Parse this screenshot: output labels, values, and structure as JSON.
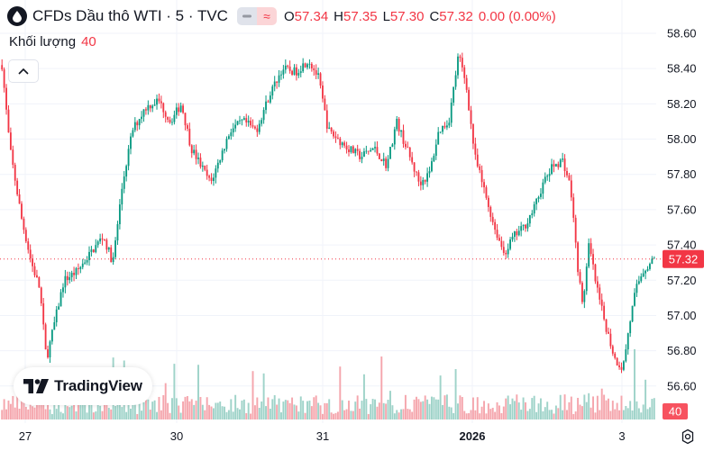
{
  "header": {
    "symbol_title": "CFDs Dầu thô WTI · 5 · TVC",
    "badges": [
      "≈"
    ],
    "ohlc": [
      {
        "key": "O",
        "value": "57.34"
      },
      {
        "key": "H",
        "value": "57.35"
      },
      {
        "key": "L",
        "value": "57.30"
      },
      {
        "key": "C",
        "value": "57.32"
      }
    ],
    "change": "0.00 (0.00%)"
  },
  "volume_legend": {
    "label": "Khối lượng",
    "value": "40"
  },
  "branding": {
    "name": "TradingView"
  },
  "colors": {
    "up": "#089981",
    "down": "#f23645",
    "grid": "#f0f3fa",
    "axis_text": "#131722"
  },
  "chart_data": {
    "type": "candlestick",
    "y_axis": {
      "ticks": [
        "56.60",
        "56.80",
        "57.00",
        "57.20",
        "57.40",
        "57.60",
        "57.80",
        "58.00",
        "58.20",
        "58.40",
        "58.60"
      ],
      "range": [
        56.5,
        58.7
      ]
    },
    "x_axis": {
      "ticks": [
        "27",
        "30",
        "31",
        "2026",
        "3"
      ]
    },
    "last_price": "57.32",
    "last_volume": "40",
    "grid": true,
    "price_path": [
      [
        0,
        58.42
      ],
      [
        0.012,
        57.95
      ],
      [
        0.03,
        57.55
      ],
      [
        0.045,
        57.3
      ],
      [
        0.058,
        57.15
      ],
      [
        0.068,
        56.75
      ],
      [
        0.08,
        56.95
      ],
      [
        0.095,
        57.2
      ],
      [
        0.115,
        57.25
      ],
      [
        0.135,
        57.35
      ],
      [
        0.155,
        57.45
      ],
      [
        0.17,
        57.3
      ],
      [
        0.185,
        57.75
      ],
      [
        0.2,
        58.05
      ],
      [
        0.22,
        58.18
      ],
      [
        0.24,
        58.22
      ],
      [
        0.258,
        58.1
      ],
      [
        0.275,
        58.2
      ],
      [
        0.29,
        57.95
      ],
      [
        0.305,
        57.85
      ],
      [
        0.32,
        57.75
      ],
      [
        0.335,
        57.9
      ],
      [
        0.35,
        58.05
      ],
      [
        0.37,
        58.1
      ],
      [
        0.39,
        58.05
      ],
      [
        0.41,
        58.25
      ],
      [
        0.43,
        58.4
      ],
      [
        0.45,
        58.38
      ],
      [
        0.47,
        58.45
      ],
      [
        0.485,
        58.35
      ],
      [
        0.5,
        58.05
      ],
      [
        0.515,
        58.0
      ],
      [
        0.53,
        57.95
      ],
      [
        0.55,
        57.9
      ],
      [
        0.57,
        57.95
      ],
      [
        0.59,
        57.85
      ],
      [
        0.605,
        58.1
      ],
      [
        0.625,
        57.9
      ],
      [
        0.64,
        57.75
      ],
      [
        0.655,
        57.8
      ],
      [
        0.67,
        58.05
      ],
      [
        0.685,
        58.1
      ],
      [
        0.7,
        58.48
      ],
      [
        0.712,
        58.3
      ],
      [
        0.725,
        57.9
      ],
      [
        0.74,
        57.7
      ],
      [
        0.755,
        57.5
      ],
      [
        0.77,
        57.35
      ],
      [
        0.785,
        57.45
      ],
      [
        0.8,
        57.5
      ],
      [
        0.815,
        57.6
      ],
      [
        0.83,
        57.75
      ],
      [
        0.845,
        57.85
      ],
      [
        0.86,
        57.88
      ],
      [
        0.872,
        57.72
      ],
      [
        0.882,
        57.3
      ],
      [
        0.89,
        57.05
      ],
      [
        0.9,
        57.4
      ],
      [
        0.912,
        57.15
      ],
      [
        0.925,
        56.95
      ],
      [
        0.94,
        56.75
      ],
      [
        0.952,
        56.7
      ],
      [
        0.962,
        56.95
      ],
      [
        0.972,
        57.15
      ],
      [
        0.982,
        57.25
      ],
      [
        0.99,
        57.28
      ],
      [
        1.0,
        57.32
      ]
    ]
  }
}
